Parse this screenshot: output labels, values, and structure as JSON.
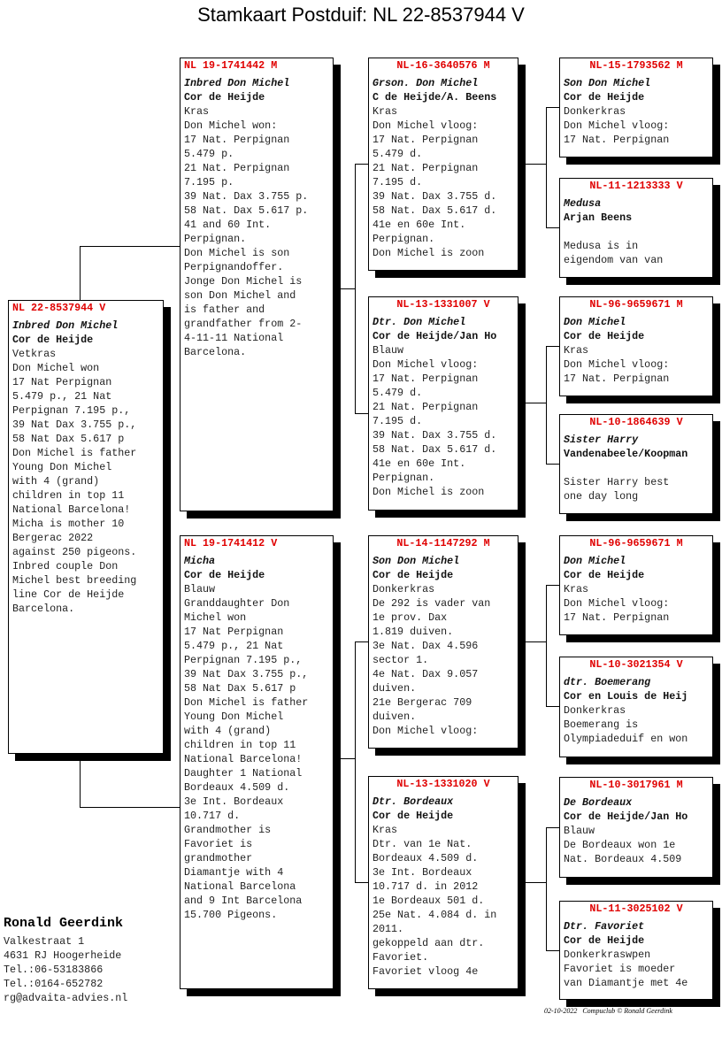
{
  "title": "Stamkaart Postduif: NL  22-8537944 V",
  "pigeons": [
    {
      "ring": "NL  22-8537944 V",
      "name": "Inbred Don Michel",
      "owner": "Cor de Heijde",
      "color": "Vetkras",
      "notes": [
        "Don Michel won",
        "17 Nat Perpignan",
        "5.479 p., 21 Nat",
        "Perpignan 7.195 p.,",
        "39 Nat Dax 3.755 p.,",
        "58 Nat Dax 5.617 p",
        "Don Michel is father",
        "Young Don Michel",
        "with 4 (grand)",
        "children in top 11",
        "National Barcelona!",
        "Micha is mother 10",
        "Bergerac 2022",
        "against 250 pigeons.",
        "Inbred couple Don",
        "Michel best breeding",
        "line Cor de Heijde",
        "Barcelona."
      ]
    },
    {
      "ring": "NL  19-1741442 M",
      "name": "Inbred Don Michel",
      "owner": "Cor de Heijde",
      "color": "Kras",
      "notes": [
        "Don Michel won:",
        "17 Nat. Perpignan",
        "5.479 p.",
        "21 Nat. Perpignan",
        "7.195 p.",
        "39 Nat. Dax 3.755 p.",
        "58 Nat. Dax 5.617 p.",
        "41 and 60 Int.",
        "Perpignan.",
        "Don Michel is son",
        "Perpignandoffer.",
        "Jonge Don Michel is",
        "son Don Michel and",
        "is father and",
        "grandfather from 2-",
        "4-11-11 National",
        "Barcelona."
      ]
    },
    {
      "ring": "NL  19-1741412 V",
      "name": "Micha",
      "owner": "Cor de Heijde",
      "color": "Blauw",
      "notes": [
        "Granddaughter Don",
        "Michel won",
        "17 Nat Perpignan",
        "5.479 p., 21 Nat",
        "Perpignan 7.195 p.,",
        "39 Nat Dax 3.755 p.,",
        "58 Nat Dax 5.617 p",
        "Don Michel is father",
        "Young Don Michel",
        "with 4 (grand)",
        "children in top 11",
        "National Barcelona!",
        "Daughter 1 National",
        "Bordeaux 4.509 d.",
        "3e Int. Bordeaux",
        "10.717 d.",
        "Grandmother is",
        "Favoriet is",
        "grandmother",
        "Diamantje with 4",
        "National Barcelona",
        "and 9 Int Barcelona",
        "15.700 Pigeons."
      ]
    },
    {
      "ring": "NL-16-3640576 M",
      "name": "Grson. Don Michel",
      "owner": "C de Heijde/A. Beens",
      "color": "Kras",
      "notes": [
        "Don Michel vloog:",
        "17 Nat. Perpignan",
        "5.479 d.",
        "21 Nat. Perpignan",
        "7.195 d.",
        "39 Nat. Dax 3.755 d.",
        "58 Nat. Dax 5.617 d.",
        "41e en 60e Int.",
        "Perpignan.",
        "Don Michel is zoon"
      ]
    },
    {
      "ring": "NL-13-1331007 V",
      "name": "Dtr. Don Michel",
      "owner": "Cor de Heijde/Jan Ho",
      "color": "Blauw",
      "notes": [
        "Don Michel vloog:",
        "17 Nat. Perpignan",
        "5.479 d.",
        "21 Nat. Perpignan",
        "7.195 d.",
        "39 Nat. Dax 3.755 d.",
        "58 Nat. Dax 5.617 d.",
        "41e en 60e Int.",
        "Perpignan.",
        "Don Michel is zoon"
      ]
    },
    {
      "ring": "NL-14-1147292 M",
      "name": "Son Don Michel",
      "owner": "Cor de Heijde",
      "color": "Donkerkras",
      "notes": [
        "De 292 is vader van",
        "1e prov. Dax",
        "1.819 duiven.",
        "3e Nat. Dax 4.596",
        "sector 1.",
        "4e Nat. Dax 9.057",
        "duiven.",
        "21e Bergerac 709",
        "duiven.",
        "Don Michel vloog:"
      ]
    },
    {
      "ring": "NL-13-1331020 V",
      "name": "Dtr. Bordeaux",
      "owner": "Cor de Heijde",
      "color": "Kras",
      "notes": [
        "Dtr. van 1e Nat.",
        "Bordeaux 4.509 d.",
        "3e Int. Bordeaux",
        "10.717 d. in 2012",
        "1e Bordeaux 501 d.",
        "25e Nat. 4.084 d. in",
        "2011.",
        "gekoppeld aan dtr.",
        "Favoriet.",
        "Favoriet vloog 4e"
      ]
    },
    {
      "ring": "NL-15-1793562 M",
      "name": "Son Don Michel",
      "owner": "Cor de Heijde",
      "color": "Donkerkras",
      "notes": [
        "Don Michel vloog:",
        "17 Nat. Perpignan"
      ]
    },
    {
      "ring": "NL-11-1213333 V",
      "name": "Medusa",
      "owner": "Arjan Beens",
      "color": "",
      "notes": [
        "Medusa is in",
        "eigendom van van"
      ]
    },
    {
      "ring": "NL-96-9659671 M",
      "name": "Don Michel",
      "owner": "Cor de Heijde",
      "color": "Kras",
      "notes": [
        "Don Michel vloog:",
        "17 Nat. Perpignan"
      ]
    },
    {
      "ring": "NL-10-1864639 V",
      "name": "Sister Harry",
      "owner": "Vandenabeele/Koopman",
      "color": "",
      "notes": [
        "Sister Harry best",
        "one day long"
      ]
    },
    {
      "ring": "NL-96-9659671 M",
      "name": "Don Michel",
      "owner": "Cor de Heijde",
      "color": "Kras",
      "notes": [
        "Don Michel vloog:",
        "17 Nat. Perpignan"
      ]
    },
    {
      "ring": "NL-10-3021354 V",
      "name": "dtr. Boemerang",
      "owner": "Cor en Louis de Heij",
      "color": "Donkerkras",
      "notes": [
        "Boemerang is",
        "Olympiadeduif en won"
      ]
    },
    {
      "ring": "NL-10-3017961 M",
      "name": "De Bordeaux",
      "owner": "Cor de Heijde/Jan Ho",
      "color": "Blauw",
      "notes": [
        "De Bordeaux won 1e",
        "Nat. Bordeaux 4.509"
      ]
    },
    {
      "ring": "NL-11-3025102 V",
      "name": "Dtr. Favoriet",
      "owner": "Cor de Heijde",
      "color": "Donkerkraswpen",
      "notes": [
        "Favoriet is moeder",
        "van Diamantje met 4e"
      ]
    }
  ],
  "owner": {
    "name": "Ronald Geerdink",
    "lines": [
      "Valkestraat 1",
      "4631 RJ  Hoogerheide",
      "Tel.:06-53183866",
      "Tel.:0164-652782",
      "rg@advaita-advies.nl"
    ]
  },
  "footer": "02-10-2022   Compuclub © Ronald Geerdink"
}
